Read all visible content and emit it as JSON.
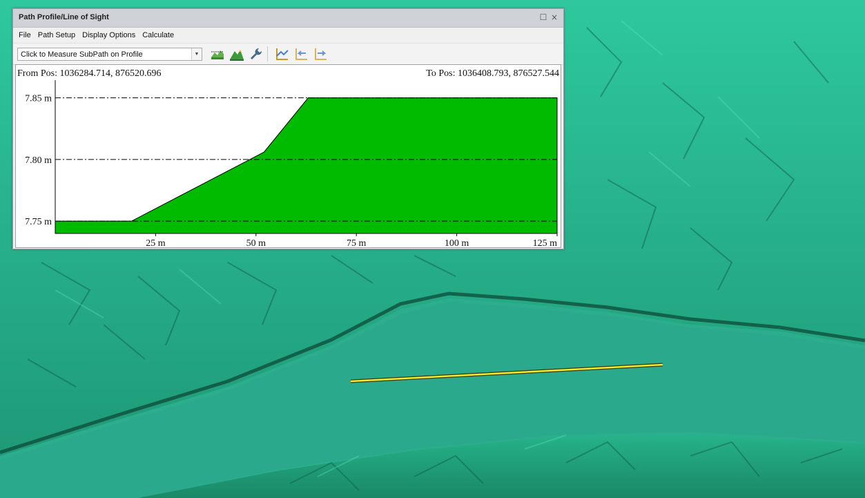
{
  "window": {
    "title": "Path Profile/Line of Sight",
    "maximize_glyph": "☐",
    "close_glyph": "×"
  },
  "menu": [
    "File",
    "Path Setup",
    "Display Options",
    "Calculate"
  ],
  "toolbar": {
    "mode_select": "Click to Measure SubPath on Profile",
    "icons": [
      "profile-setup-icon",
      "terrain-icon",
      "wrench-icon",
      "show-profile-icon",
      "step-back-icon",
      "step-forward-icon"
    ]
  },
  "profile": {
    "from_label": "From Pos: 1036284.714, 876520.696",
    "to_label": "To Pos: 1036408.793, 876527.544"
  },
  "chart_data": {
    "type": "area",
    "title": "",
    "xlabel": "",
    "ylabel": "",
    "xlim": [
      0,
      125
    ],
    "ylim": [
      7.74,
      7.861
    ],
    "x": [
      0,
      19,
      52,
      63,
      125
    ],
    "y": [
      7.75,
      7.75,
      7.806,
      7.85,
      7.85
    ],
    "xticks": [
      25,
      50,
      75,
      100,
      125
    ],
    "xtick_labels": [
      "25 m",
      "50 m",
      "75 m",
      "100 m",
      "125 m"
    ],
    "yticks": [
      7.75,
      7.8,
      7.85
    ],
    "ytick_labels": [
      "7.75 m",
      "7.80 m",
      "7.85 m"
    ],
    "fill_color": "#00bb00",
    "gridlines": "dash-dot",
    "grid": true
  },
  "map": {
    "path_color": "#f2ee2a"
  }
}
